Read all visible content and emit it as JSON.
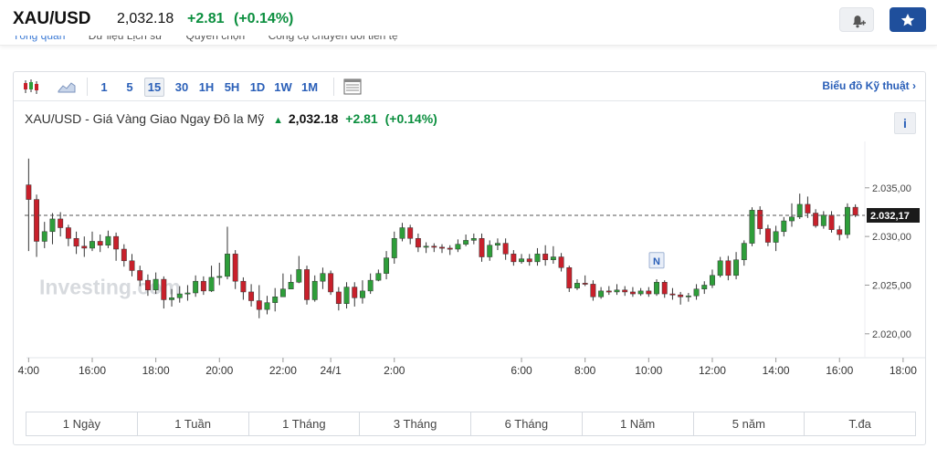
{
  "header": {
    "symbol": "XAU/USD",
    "price": "2,032.18",
    "change": "+2.81",
    "change_pct": "(+0.14%)"
  },
  "subnav": [
    "Tổng quan",
    "Dữ liệu Lịch sử",
    "Quyền chọn",
    "Công cụ chuyển đổi tiền tệ"
  ],
  "toolbar": {
    "timeframes": [
      "1",
      "5",
      "15",
      "30",
      "1H",
      "5H",
      "1D",
      "1W",
      "1M"
    ],
    "active_timeframe": "15",
    "tech_chart_link": "Biểu đồ Kỹ thuật ›"
  },
  "chart_title": {
    "name": "XAU/USD - Giá Vàng Giao Ngay Đô la Mỹ",
    "price": "2,032.18",
    "change": "+2.81",
    "change_pct": "(+0.14%)",
    "arrow": "▲",
    "info": "i"
  },
  "watermark": "Investing.com",
  "ranges": [
    "1 Ngày",
    "1 Tuần",
    "1 Tháng",
    "3 Tháng",
    "6 Tháng",
    "1 Năm",
    "5 năm",
    "T.đa"
  ],
  "colors": {
    "up": "#2e9e3a",
    "down": "#c8202b",
    "accent": "#2a5fb8"
  },
  "chart_data": {
    "type": "candlestick",
    "y_ticks": [
      "2.035,00",
      "2.030,00",
      "2.025,00",
      "2.020,00"
    ],
    "ylim": [
      2018.2,
      2039.2
    ],
    "x_ticks": [
      "4:00",
      "16:00",
      "18:00",
      "20:00",
      "22:00",
      "24/1",
      "2:00",
      "6:00",
      "8:00",
      "10:00",
      "12:00",
      "14:00",
      "16:00",
      "18:00"
    ],
    "last_price_label": "2.032,17",
    "last_price": 2032.17,
    "event_marker": "N",
    "candles": [
      [
        2035.3,
        2033.8,
        2038.0,
        2028.5
      ],
      [
        2033.8,
        2029.5,
        2034.3,
        2027.9
      ],
      [
        2029.5,
        2030.5,
        2031.5,
        2028.8
      ],
      [
        2030.5,
        2031.8,
        2032.4,
        2029.2
      ],
      [
        2031.8,
        2030.9,
        2032.5,
        2030.0
      ],
      [
        2030.9,
        2029.8,
        2031.2,
        2029.0
      ],
      [
        2029.8,
        2029.0,
        2030.5,
        2028.2
      ],
      [
        2029.0,
        2028.8,
        2030.0,
        2027.9
      ],
      [
        2028.8,
        2029.5,
        2030.5,
        2028.5
      ],
      [
        2029.5,
        2029.1,
        2030.2,
        2028.4
      ],
      [
        2029.1,
        2030.0,
        2030.6,
        2028.8
      ],
      [
        2030.0,
        2028.7,
        2030.4,
        2027.5
      ],
      [
        2028.7,
        2027.5,
        2029.2,
        2026.9
      ],
      [
        2027.5,
        2026.5,
        2028.2,
        2025.9
      ],
      [
        2026.5,
        2025.5,
        2027.0,
        2024.9
      ],
      [
        2025.5,
        2024.5,
        2026.1,
        2023.9
      ],
      [
        2024.5,
        2025.6,
        2026.3,
        2024.1
      ],
      [
        2025.6,
        2023.5,
        2025.9,
        2022.6
      ],
      [
        2023.5,
        2023.7,
        2024.6,
        2022.8
      ],
      [
        2023.7,
        2024.1,
        2024.9,
        2023.2
      ],
      [
        2024.1,
        2024.2,
        2025.0,
        2023.4
      ],
      [
        2024.2,
        2025.4,
        2026.0,
        2023.8
      ],
      [
        2025.4,
        2024.4,
        2025.9,
        2024.0
      ],
      [
        2024.4,
        2025.8,
        2027.0,
        2024.3
      ],
      [
        2025.8,
        2025.9,
        2027.3,
        2025.0
      ],
      [
        2025.9,
        2028.2,
        2031.0,
        2025.6
      ],
      [
        2028.2,
        2025.4,
        2028.6,
        2024.6
      ],
      [
        2025.4,
        2024.3,
        2025.8,
        2023.5
      ],
      [
        2024.3,
        2023.4,
        2025.1,
        2022.8
      ],
      [
        2023.4,
        2022.5,
        2025.0,
        2021.6
      ],
      [
        2022.5,
        2023.2,
        2023.9,
        2022.0
      ],
      [
        2023.2,
        2023.8,
        2024.7,
        2022.3
      ],
      [
        2023.8,
        2024.6,
        2026.2,
        2024.0
      ],
      [
        2024.6,
        2025.3,
        2026.1,
        2024.9
      ],
      [
        2025.3,
        2026.6,
        2028.0,
        2025.2
      ],
      [
        2026.6,
        2023.5,
        2027.0,
        2023.0
      ],
      [
        2023.5,
        2025.4,
        2026.0,
        2023.3
      ],
      [
        2025.4,
        2026.2,
        2026.8,
        2024.6
      ],
      [
        2026.2,
        2024.3,
        2026.5,
        2024.0
      ],
      [
        2024.3,
        2023.1,
        2024.8,
        2022.4
      ],
      [
        2023.1,
        2024.8,
        2025.3,
        2022.6
      ],
      [
        2024.8,
        2023.7,
        2025.3,
        2022.8
      ],
      [
        2023.7,
        2024.4,
        2025.5,
        2023.1
      ],
      [
        2024.4,
        2025.5,
        2026.2,
        2024.1
      ],
      [
        2025.5,
        2026.2,
        2026.6,
        2025.4
      ],
      [
        2026.2,
        2027.8,
        2028.5,
        2025.6
      ],
      [
        2027.8,
        2029.8,
        2030.5,
        2027.2
      ],
      [
        2029.8,
        2030.9,
        2031.4,
        2029.5
      ],
      [
        2030.9,
        2029.8,
        2031.2,
        2029.2
      ],
      [
        2029.8,
        2028.9,
        2030.3,
        2028.4
      ],
      [
        2028.9,
        2029.0,
        2029.4,
        2028.3
      ],
      [
        2029.0,
        2028.9,
        2029.3,
        2028.4
      ],
      [
        2028.9,
        2028.8,
        2029.2,
        2028.3
      ],
      [
        2028.8,
        2028.7,
        2029.1,
        2028.1
      ],
      [
        2028.7,
        2029.2,
        2029.7,
        2028.4
      ],
      [
        2029.2,
        2029.6,
        2030.2,
        2029.0
      ],
      [
        2029.6,
        2029.8,
        2030.3,
        2029.2
      ],
      [
        2029.8,
        2027.9,
        2030.3,
        2027.4
      ],
      [
        2027.9,
        2029.1,
        2029.6,
        2027.5
      ],
      [
        2029.1,
        2029.3,
        2029.8,
        2028.6
      ],
      [
        2029.3,
        2028.2,
        2029.8,
        2027.6
      ],
      [
        2028.2,
        2027.4,
        2028.6,
        2027.0
      ],
      [
        2027.4,
        2027.7,
        2028.2,
        2027.2
      ],
      [
        2027.7,
        2027.4,
        2028.2,
        2027.0
      ],
      [
        2027.4,
        2028.2,
        2028.8,
        2027.0
      ],
      [
        2028.2,
        2027.6,
        2029.1,
        2027.0
      ],
      [
        2027.6,
        2027.9,
        2029.0,
        2027.2
      ],
      [
        2027.9,
        2026.8,
        2028.3,
        2026.4
      ],
      [
        2026.8,
        2024.7,
        2027.0,
        2024.3
      ],
      [
        2024.7,
        2025.2,
        2025.6,
        2024.5
      ],
      [
        2025.2,
        2025.1,
        2026.0,
        2024.9
      ],
      [
        2025.1,
        2023.8,
        2025.5,
        2023.4
      ],
      [
        2023.8,
        2024.4,
        2024.8,
        2023.6
      ],
      [
        2024.4,
        2024.3,
        2024.9,
        2024.0
      ],
      [
        2024.3,
        2024.5,
        2025.1,
        2024.0
      ],
      [
        2024.5,
        2024.3,
        2024.9,
        2023.9
      ],
      [
        2024.3,
        2024.1,
        2024.8,
        2023.8
      ],
      [
        2024.1,
        2024.4,
        2024.7,
        2023.9
      ],
      [
        2024.4,
        2024.1,
        2024.8,
        2023.8
      ],
      [
        2024.1,
        2025.3,
        2025.6,
        2023.9
      ],
      [
        2025.3,
        2024.1,
        2025.5,
        2023.7
      ],
      [
        2024.1,
        2024.0,
        2024.7,
        2023.5
      ],
      [
        2024.0,
        2023.8,
        2024.3,
        2023.0
      ],
      [
        2023.8,
        2023.9,
        2024.2,
        2023.3
      ],
      [
        2023.9,
        2024.6,
        2025.1,
        2023.5
      ],
      [
        2024.6,
        2025.0,
        2025.4,
        2024.1
      ],
      [
        2025.0,
        2026.0,
        2026.6,
        2024.7
      ],
      [
        2026.0,
        2027.5,
        2027.9,
        2025.8
      ],
      [
        2027.5,
        2026.0,
        2028.0,
        2025.5
      ],
      [
        2026.0,
        2027.6,
        2028.4,
        2025.6
      ],
      [
        2027.6,
        2029.3,
        2029.6,
        2027.0
      ],
      [
        2029.3,
        2032.7,
        2033.0,
        2029.0
      ],
      [
        2032.7,
        2030.8,
        2033.1,
        2030.2
      ],
      [
        2030.8,
        2029.4,
        2031.2,
        2029.0
      ],
      [
        2029.4,
        2030.5,
        2031.1,
        2028.5
      ],
      [
        2030.5,
        2031.6,
        2032.0,
        2030.0
      ],
      [
        2031.6,
        2032.0,
        2033.4,
        2031.0
      ],
      [
        2032.0,
        2033.3,
        2034.4,
        2031.8
      ],
      [
        2033.3,
        2032.4,
        2034.1,
        2031.9
      ],
      [
        2032.4,
        2031.1,
        2032.8,
        2030.9
      ],
      [
        2031.1,
        2032.2,
        2032.6,
        2030.8
      ],
      [
        2032.2,
        2030.7,
        2032.6,
        2030.4
      ],
      [
        2030.7,
        2030.2,
        2031.1,
        2029.6
      ],
      [
        2030.2,
        2033.0,
        2033.4,
        2029.8
      ],
      [
        2033.0,
        2032.2,
        2033.3,
        2032.0
      ]
    ]
  }
}
